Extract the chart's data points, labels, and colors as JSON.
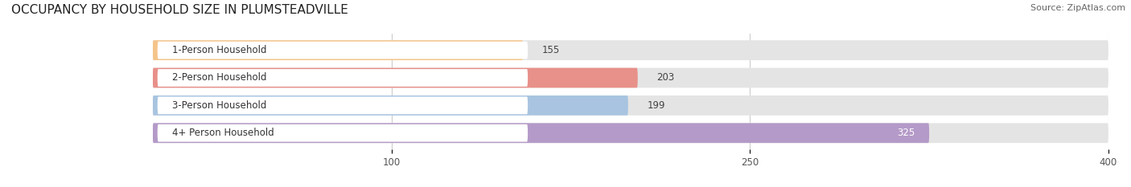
{
  "title": "OCCUPANCY BY HOUSEHOLD SIZE IN PLUMSTEADVILLE",
  "source": "Source: ZipAtlas.com",
  "categories": [
    "1-Person Household",
    "2-Person Household",
    "3-Person Household",
    "4+ Person Household"
  ],
  "values": [
    155,
    203,
    199,
    325
  ],
  "bar_colors": [
    "#f5c48a",
    "#e8908a",
    "#a8c4e0",
    "#b49ac8"
  ],
  "label_colors": [
    "#333333",
    "#333333",
    "#333333",
    "#ffffff"
  ],
  "xlim": [
    0,
    400
  ],
  "xticks": [
    100,
    250,
    400
  ],
  "bg_color": "#f2f2f2",
  "bar_bg_color": "#e4e4e4",
  "title_fontsize": 11,
  "label_fontsize": 8.5,
  "value_fontsize": 8.5,
  "source_fontsize": 8
}
